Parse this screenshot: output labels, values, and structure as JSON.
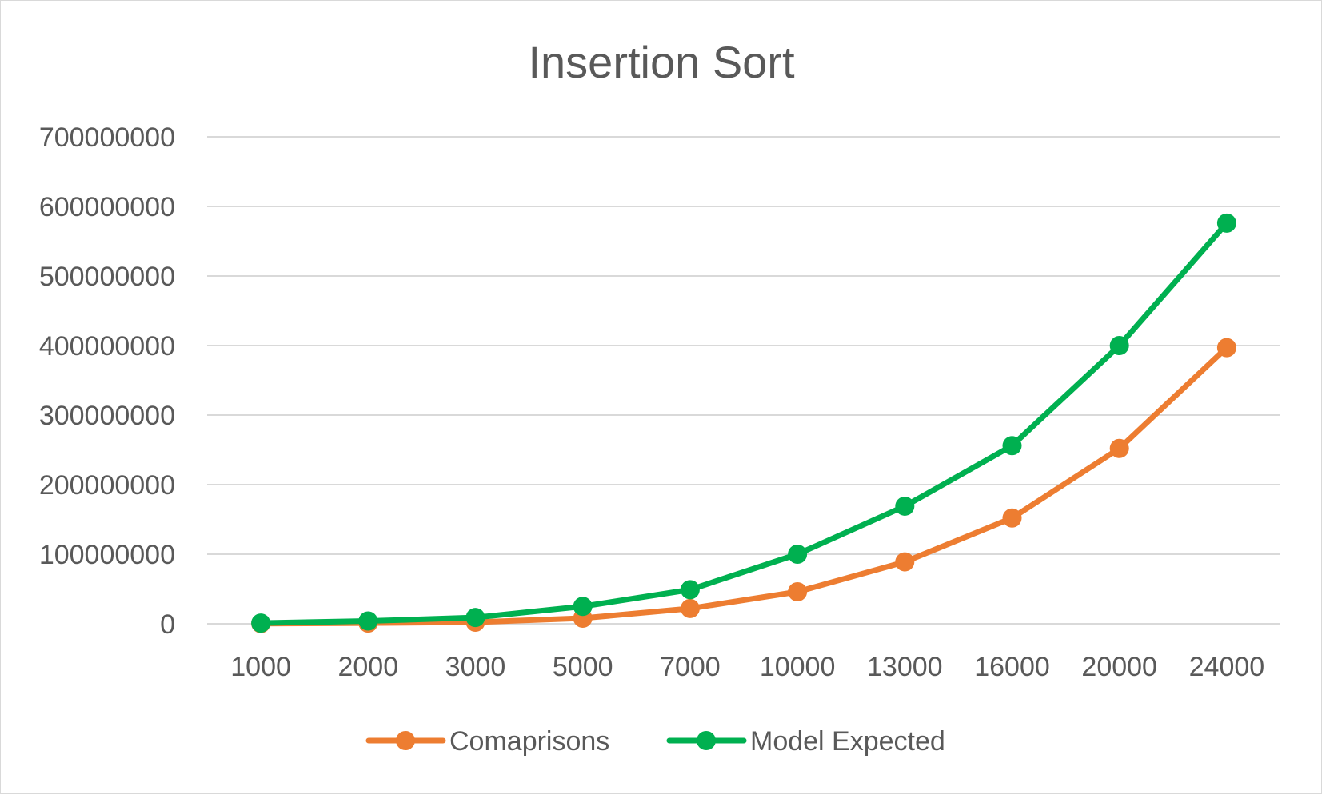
{
  "chart_data": {
    "type": "line",
    "title": "Insertion Sort",
    "xlabel": "",
    "ylabel": "",
    "categories": [
      "1000",
      "2000",
      "3000",
      "5000",
      "7000",
      "10000",
      "13000",
      "16000",
      "20000",
      "24000"
    ],
    "ylim": [
      0,
      700000000
    ],
    "yticks": [
      "0",
      "100000000",
      "200000000",
      "300000000",
      "400000000",
      "500000000",
      "600000000",
      "700000000"
    ],
    "grid": true,
    "legend_position": "bottom",
    "series": [
      {
        "name": "Comaprisons",
        "color": "#ED7D31",
        "values": [
          250000,
          1000000,
          2250000,
          8000000,
          22000000,
          46000000,
          89000000,
          152000000,
          252000000,
          397000000
        ]
      },
      {
        "name": "Model Expected",
        "color": "#00B050",
        "values": [
          1000000,
          4000000,
          9000000,
          25000000,
          49000000,
          100000000,
          169000000,
          256000000,
          400000000,
          576000000
        ]
      }
    ]
  }
}
